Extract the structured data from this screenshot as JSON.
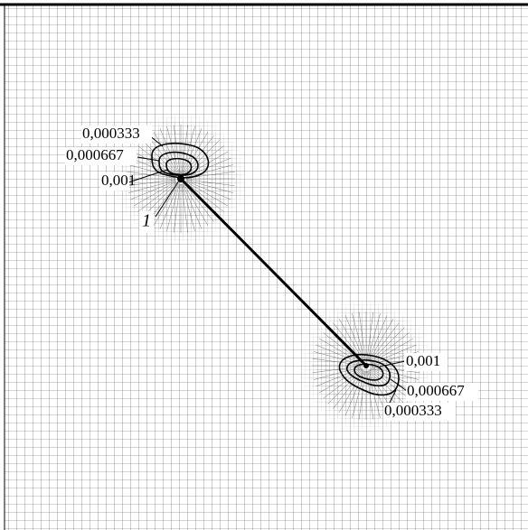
{
  "upper_labels": [
    "0,000333",
    "0,000667",
    "0,001"
  ],
  "marker": "1",
  "lower_labels": [
    "0,001",
    "0,000667",
    "0,000333"
  ]
}
